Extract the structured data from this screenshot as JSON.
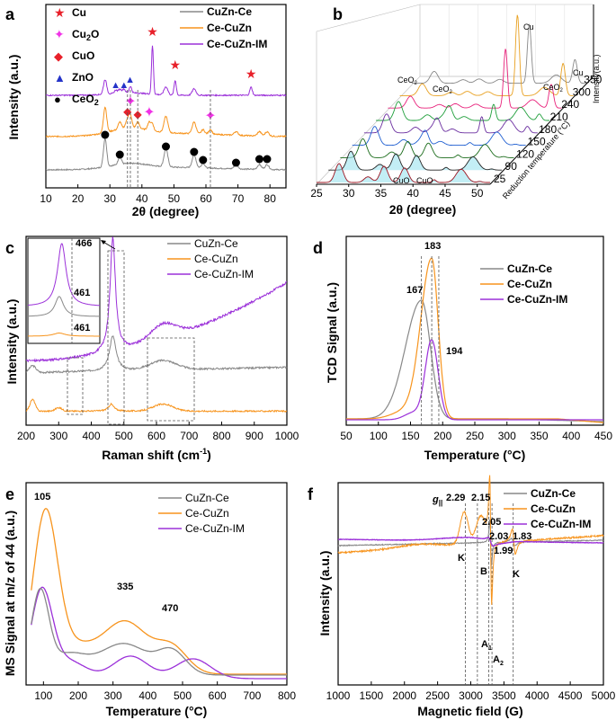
{
  "colors": {
    "gray": "#888888",
    "orange": "#f7941d",
    "purple": "#9b30d9",
    "red": "#e8202a",
    "magenta": "#f032e6",
    "blue": "#2433c8",
    "black": "#000000"
  },
  "chart_data": [
    {
      "panel": "a",
      "type": "line",
      "xlabel": "2θ (degree)",
      "ylabel": "Intensity (a.u.)",
      "xlim": [
        10,
        85
      ],
      "xticks": [
        "10",
        "20",
        "30",
        "40",
        "50",
        "60",
        "70",
        "80"
      ],
      "series": [
        {
          "name": "CuZn-Ce"
        },
        {
          "name": "Ce-CuZn"
        },
        {
          "name": "Ce-CuZn-IM"
        }
      ],
      "markers": [
        {
          "label": "Cu",
          "symbol": "★",
          "color": "#e8202a"
        },
        {
          "label": "Cu",
          "sub": "2",
          "post": "O",
          "symbol": "✦",
          "color": "#f032e6"
        },
        {
          "label": "CuO",
          "symbol": "◆",
          "color": "#e8202a"
        },
        {
          "label": "ZnO",
          "symbol": "▲",
          "color": "#2433c8"
        },
        {
          "label": "CeO",
          "sub": "2",
          "symbol": "●",
          "color": "#000000"
        }
      ],
      "cu_peaks": [
        43.3,
        50.4,
        74.1
      ],
      "cu2o_peaks": [
        36.4,
        42.3,
        61.4
      ],
      "cuo_peaks": [
        35.5,
        38.7
      ],
      "zno_peaks": [
        31.8,
        34.4,
        36.3
      ],
      "ceo2_peaks": [
        28.5,
        33.1,
        47.5,
        56.3,
        59.1,
        69.4,
        76.7,
        79.1
      ]
    },
    {
      "panel": "b",
      "type": "line",
      "xlabel": "2θ (degree)",
      "ylabel": "Intensity(a.u.)",
      "zlabel": "Reduction temperature (°C)",
      "xticks": [
        "25",
        "30",
        "35",
        "40",
        "45",
        "50"
      ],
      "temperatures": [
        "25",
        "90",
        "120",
        "150",
        "180",
        "210",
        "240",
        "300",
        "350"
      ],
      "annotations": [
        "Cu",
        "Cu",
        "CeO",
        "CeO",
        "CeO",
        "CuO",
        "CuO"
      ],
      "sub2": "2"
    },
    {
      "panel": "c",
      "type": "line",
      "xlabel": "Raman shift (cm",
      "xlabel_sup": "-1",
      "xlabel_end": ")",
      "ylabel": "Intensity (a.u.)",
      "xlim": [
        200,
        1000
      ],
      "xticks": [
        "200",
        "300",
        "400",
        "500",
        "600",
        "700",
        "800",
        "900",
        "1000"
      ],
      "series": [
        {
          "name": "CuZn-Ce"
        },
        {
          "name": "Ce-CuZn"
        },
        {
          "name": "Ce-CuZn-IM"
        }
      ],
      "inset_labels": [
        "466",
        "461",
        "461"
      ]
    },
    {
      "panel": "d",
      "type": "line",
      "xlabel": "Temperature (°C)",
      "ylabel": "TCD Signal (a.u.)",
      "xlim": [
        50,
        450
      ],
      "xticks": [
        "50",
        "100",
        "150",
        "200",
        "250",
        "300",
        "350",
        "400",
        "450"
      ],
      "series": [
        {
          "name": "CuZn-Ce",
          "peak_x": 167
        },
        {
          "name": "Ce-CuZn",
          "peak_x": 183
        },
        {
          "name": "Ce-CuZn-IM",
          "peak_x": 194
        }
      ],
      "peak_labels": [
        "183",
        "167",
        "194"
      ]
    },
    {
      "panel": "e",
      "type": "line",
      "xlabel": "Temperature (°C)",
      "ylabel": "MS Signal at m/z of 44 (a.u.)",
      "xlim": [
        50,
        800
      ],
      "xticks": [
        "100",
        "200",
        "300",
        "400",
        "500",
        "600",
        "700",
        "800"
      ],
      "series": [
        {
          "name": "CuZn-Ce"
        },
        {
          "name": "Ce-CuZn"
        },
        {
          "name": "Ce-CuZn-IM"
        }
      ],
      "peak_labels": [
        "105",
        "335",
        "470"
      ]
    },
    {
      "panel": "f",
      "type": "line",
      "xlabel": "Magnetic field (G)",
      "ylabel": "Intensity (a.u.)",
      "xlim": [
        1000,
        5000
      ],
      "xticks": [
        "1000",
        "1500",
        "2000",
        "2500",
        "3000",
        "3500",
        "4000",
        "4500",
        "5000"
      ],
      "series": [
        {
          "name": "CuZn-Ce"
        },
        {
          "name": "Ce-CuZn"
        },
        {
          "name": "Ce-CuZn-IM"
        }
      ],
      "g_labels": [
        "g",
        "||",
        "2.29",
        "2.15",
        "2.05",
        "2.03",
        "1.83",
        "1.99"
      ],
      "point_labels": [
        "K",
        "B",
        "K",
        "A",
        "1",
        "A",
        "2"
      ]
    }
  ]
}
